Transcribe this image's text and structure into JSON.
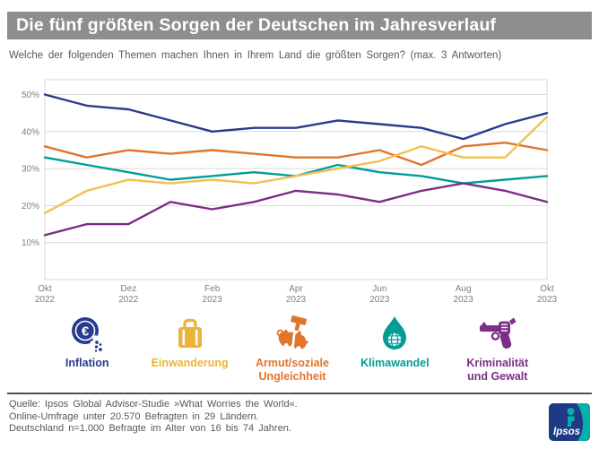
{
  "title": "Die fünf größten Sorgen der Deutschen im Jahresverlauf",
  "subtitle": "Welche der folgenden Themen machen Ihnen in Ihrem Land die größten Sorgen? (max. 3 Antworten)",
  "chart_data": {
    "type": "line",
    "x": [
      "Okt 2022",
      "Nov 2022",
      "Dez 2022",
      "Jan 2023",
      "Feb 2023",
      "Mär 2023",
      "Apr 2023",
      "Mai 2023",
      "Jun 2023",
      "Jul 2023",
      "Aug 2023",
      "Sep 2023",
      "Okt 2023"
    ],
    "x_tick_labels": [
      [
        "Okt",
        "2022"
      ],
      [
        "Dez",
        "2022"
      ],
      [
        "Feb",
        "2023"
      ],
      [
        "Apr",
        "2023"
      ],
      [
        "Jun",
        "2023"
      ],
      [
        "Aug",
        "2023"
      ],
      [
        "Okt",
        "2023"
      ]
    ],
    "y_ticks": [
      "50%",
      "40%",
      "30%",
      "20%",
      "10%"
    ],
    "ylim": [
      0,
      54
    ],
    "grid": true,
    "legend_position": "bottom",
    "series": [
      {
        "name": "Inflation",
        "color": "#2b3a8e",
        "values": [
          50,
          47,
          46,
          43,
          40,
          41,
          41,
          43,
          42,
          41,
          38,
          42,
          45
        ]
      },
      {
        "name": "Armut/soziale Ungleichheit",
        "color": "#e1752c",
        "values": [
          36,
          33,
          35,
          34,
          35,
          34,
          33,
          33,
          35,
          31,
          36,
          37,
          35
        ]
      },
      {
        "name": "Klimawandel",
        "color": "#009e97",
        "values": [
          33,
          31,
          29,
          27,
          28,
          29,
          28,
          31,
          29,
          28,
          26,
          27,
          28
        ]
      },
      {
        "name": "Kriminalität und Gewalt",
        "color": "#7c2e87",
        "values": [
          12,
          15,
          15,
          21,
          19,
          21,
          24,
          23,
          21,
          24,
          26,
          24,
          21
        ]
      },
      {
        "name": "Einwanderung",
        "color": "#f0c152",
        "values": [
          18,
          24,
          27,
          26,
          27,
          26,
          28,
          30,
          32,
          36,
          33,
          33,
          44
        ]
      }
    ]
  },
  "legend": {
    "items": [
      {
        "label": "Inflation",
        "label2": "",
        "color": "#283a8d",
        "icon": "euro-coin"
      },
      {
        "label": "Einwanderung",
        "label2": "",
        "color": "#eab438",
        "icon": "suitcase"
      },
      {
        "label": "Armut/soziale",
        "label2": "Ungleichheit",
        "color": "#e1752c",
        "icon": "broken-piggy-bank"
      },
      {
        "label": "Klimawandel",
        "label2": "",
        "color": "#009d95",
        "icon": "flame-globe"
      },
      {
        "label": "Kriminalität",
        "label2": "und Gewalt",
        "color": "#7c2e87",
        "icon": "revolver"
      }
    ]
  },
  "footer": {
    "line1": "Quelle: Ipsos Global Advisor-Studie »What Worries the World«.",
    "line2": "Online-Umfrage unter 20.570 Befragten in 29 Ländern.",
    "line3": "Deutschland n=1.000 Befragte im Alter von 16 bis 74 Jahren.",
    "logo_text": "Ipsos"
  },
  "colors": {
    "title_bar_bg": "#8e8e90",
    "title_text": "#ffffff",
    "subtitle_text": "#58585a",
    "axis_text": "#7f7f7f",
    "grid": "#d9d9d9",
    "footer_text": "#58585a",
    "divider": "#515153",
    "logo_navy": "#1f3a85",
    "logo_teal": "#00b2a9"
  }
}
